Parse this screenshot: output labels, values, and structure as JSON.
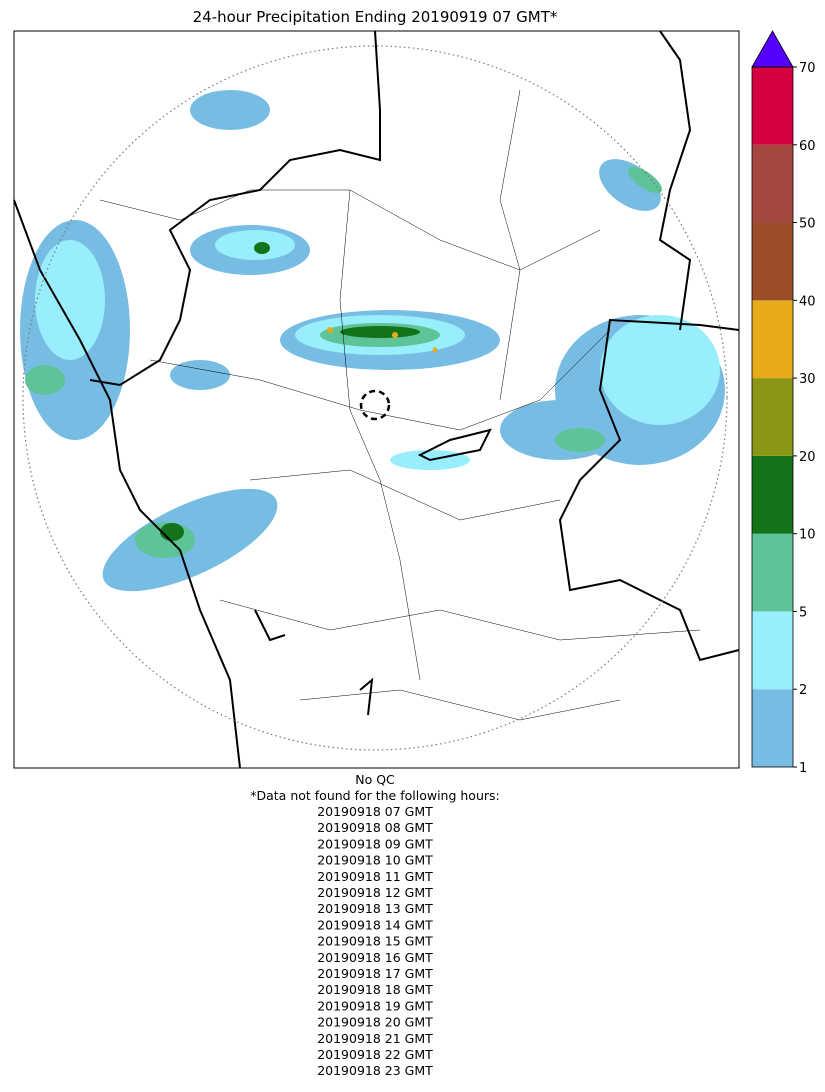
{
  "title": "24-hour Precipitation Ending 20190919 07 GMT*",
  "colorbar": {
    "levels": [
      1,
      2,
      5,
      10,
      20,
      30,
      40,
      50,
      60,
      70
    ],
    "colors": [
      "#77bde3",
      "#98eefc",
      "#5ec396",
      "#12731a",
      "#8b9616",
      "#e6aa1a",
      "#9a4d28",
      "#a3483f",
      "#d5003f"
    ],
    "extend_color": "#5500ff"
  },
  "footer": {
    "note": "No QC",
    "missing_heading": "*Data not found for the following hours:",
    "missing_hours": [
      "20190918 07 GMT",
      "20190918 08 GMT",
      "20190918 09 GMT",
      "20190918 10 GMT",
      "20190918 11 GMT",
      "20190918 12 GMT",
      "20190918 13 GMT",
      "20190918 14 GMT",
      "20190918 15 GMT",
      "20190918 16 GMT",
      "20190918 17 GMT",
      "20190918 18 GMT",
      "20190918 19 GMT",
      "20190918 20 GMT",
      "20190918 21 GMT",
      "20190918 22 GMT",
      "20190918 23 GMT"
    ]
  }
}
